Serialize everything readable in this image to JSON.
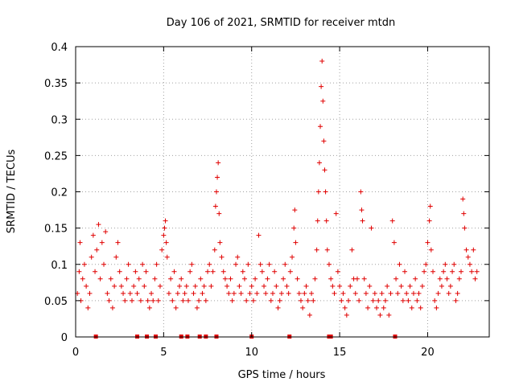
{
  "chart_data": {
    "type": "scatter",
    "title": "Day 106 of 2021, SRMTID for receiver mtdn",
    "xlabel": "GPS time / hours",
    "ylabel": "SRMTID / TECUs",
    "xlim": [
      0,
      23.5
    ],
    "ylim": [
      0,
      0.4
    ],
    "grid": true,
    "marker": "+",
    "marker_color": "#e00000",
    "x_ticks": [
      0,
      5,
      10,
      15,
      20
    ],
    "x_tick_labels": [
      "0",
      "5",
      "10",
      "15",
      "20"
    ],
    "y_ticks": [
      0,
      0.05,
      0.1,
      0.15,
      0.2,
      0.25,
      0.3,
      0.35,
      0.4
    ],
    "y_tick_labels": [
      "0",
      "0.05",
      "0.1",
      "0.15",
      "0.2",
      "0.25",
      "0.3",
      "0.35",
      "0.4"
    ],
    "flag_times_hours": [
      1.15,
      3.5,
      4.05,
      4.55,
      6.0,
      6.35,
      7.05,
      7.4,
      8.0,
      10.0,
      12.15,
      14.4,
      14.5,
      18.15
    ],
    "series": [
      {
        "name": "SRMTID",
        "points": [
          [
            0.1,
            0.06
          ],
          [
            0.2,
            0.09
          ],
          [
            0.25,
            0.13
          ],
          [
            0.3,
            0.05
          ],
          [
            0.4,
            0.08
          ],
          [
            0.5,
            0.1
          ],
          [
            0.6,
            0.07
          ],
          [
            0.7,
            0.04
          ],
          [
            0.8,
            0.06
          ],
          [
            0.9,
            0.11
          ],
          [
            1.0,
            0.14
          ],
          [
            1.1,
            0.09
          ],
          [
            1.2,
            0.12
          ],
          [
            1.3,
            0.155
          ],
          [
            1.4,
            0.08
          ],
          [
            1.5,
            0.13
          ],
          [
            1.6,
            0.1
          ],
          [
            1.7,
            0.145
          ],
          [
            1.8,
            0.06
          ],
          [
            1.9,
            0.05
          ],
          [
            2.0,
            0.08
          ],
          [
            2.1,
            0.04
          ],
          [
            2.2,
            0.07
          ],
          [
            2.3,
            0.11
          ],
          [
            2.4,
            0.13
          ],
          [
            2.5,
            0.09
          ],
          [
            2.6,
            0.07
          ],
          [
            2.7,
            0.06
          ],
          [
            2.8,
            0.05
          ],
          [
            2.9,
            0.08
          ],
          [
            3.0,
            0.1
          ],
          [
            3.1,
            0.06
          ],
          [
            3.2,
            0.05
          ],
          [
            3.3,
            0.07
          ],
          [
            3.4,
            0.09
          ],
          [
            3.5,
            0.06
          ],
          [
            3.6,
            0.08
          ],
          [
            3.7,
            0.05
          ],
          [
            3.8,
            0.1
          ],
          [
            3.9,
            0.07
          ],
          [
            4.0,
            0.09
          ],
          [
            4.1,
            0.05
          ],
          [
            4.2,
            0.04
          ],
          [
            4.3,
            0.06
          ],
          [
            4.4,
            0.05
          ],
          [
            4.5,
            0.08
          ],
          [
            4.6,
            0.1
          ],
          [
            4.7,
            0.05
          ],
          [
            4.8,
            0.07
          ],
          [
            4.9,
            0.12
          ],
          [
            5.0,
            0.14
          ],
          [
            5.05,
            0.15
          ],
          [
            5.1,
            0.16
          ],
          [
            5.15,
            0.13
          ],
          [
            5.2,
            0.11
          ],
          [
            5.3,
            0.06
          ],
          [
            5.4,
            0.08
          ],
          [
            5.5,
            0.05
          ],
          [
            5.6,
            0.09
          ],
          [
            5.7,
            0.04
          ],
          [
            5.8,
            0.06
          ],
          [
            5.9,
            0.07
          ],
          [
            6.0,
            0.08
          ],
          [
            6.1,
            0.05
          ],
          [
            6.2,
            0.06
          ],
          [
            6.3,
            0.07
          ],
          [
            6.4,
            0.05
          ],
          [
            6.5,
            0.09
          ],
          [
            6.6,
            0.1
          ],
          [
            6.7,
            0.06
          ],
          [
            6.8,
            0.07
          ],
          [
            6.9,
            0.04
          ],
          [
            7.0,
            0.05
          ],
          [
            7.1,
            0.08
          ],
          [
            7.2,
            0.06
          ],
          [
            7.3,
            0.07
          ],
          [
            7.4,
            0.05
          ],
          [
            7.5,
            0.09
          ],
          [
            7.6,
            0.1
          ],
          [
            7.7,
            0.07
          ],
          [
            7.8,
            0.09
          ],
          [
            7.9,
            0.12
          ],
          [
            7.95,
            0.18
          ],
          [
            8.0,
            0.2
          ],
          [
            8.05,
            0.22
          ],
          [
            8.1,
            0.24
          ],
          [
            8.15,
            0.17
          ],
          [
            8.2,
            0.13
          ],
          [
            8.3,
            0.11
          ],
          [
            8.4,
            0.09
          ],
          [
            8.5,
            0.08
          ],
          [
            8.6,
            0.07
          ],
          [
            8.7,
            0.06
          ],
          [
            8.8,
            0.08
          ],
          [
            8.9,
            0.05
          ],
          [
            9.0,
            0.06
          ],
          [
            9.1,
            0.1
          ],
          [
            9.2,
            0.11
          ],
          [
            9.3,
            0.07
          ],
          [
            9.4,
            0.06
          ],
          [
            9.5,
            0.09
          ],
          [
            9.6,
            0.08
          ],
          [
            9.7,
            0.05
          ],
          [
            9.8,
            0.1
          ],
          [
            9.9,
            0.06
          ],
          [
            10.0,
            0.07
          ],
          [
            10.1,
            0.05
          ],
          [
            10.2,
            0.08
          ],
          [
            10.3,
            0.06
          ],
          [
            10.4,
            0.14
          ],
          [
            10.5,
            0.1
          ],
          [
            10.6,
            0.09
          ],
          [
            10.7,
            0.07
          ],
          [
            10.8,
            0.06
          ],
          [
            10.9,
            0.08
          ],
          [
            11.0,
            0.1
          ],
          [
            11.1,
            0.05
          ],
          [
            11.2,
            0.06
          ],
          [
            11.3,
            0.09
          ],
          [
            11.4,
            0.07
          ],
          [
            11.5,
            0.04
          ],
          [
            11.6,
            0.05
          ],
          [
            11.7,
            0.06
          ],
          [
            11.8,
            0.08
          ],
          [
            11.9,
            0.1
          ],
          [
            12.0,
            0.07
          ],
          [
            12.1,
            0.06
          ],
          [
            12.2,
            0.09
          ],
          [
            12.3,
            0.11
          ],
          [
            12.4,
            0.15
          ],
          [
            12.45,
            0.175
          ],
          [
            12.5,
            0.13
          ],
          [
            12.6,
            0.08
          ],
          [
            12.7,
            0.06
          ],
          [
            12.8,
            0.05
          ],
          [
            12.9,
            0.04
          ],
          [
            13.0,
            0.06
          ],
          [
            13.1,
            0.07
          ],
          [
            13.2,
            0.05
          ],
          [
            13.3,
            0.03
          ],
          [
            13.4,
            0.06
          ],
          [
            13.5,
            0.05
          ],
          [
            13.6,
            0.08
          ],
          [
            13.7,
            0.12
          ],
          [
            13.75,
            0.16
          ],
          [
            13.8,
            0.2
          ],
          [
            13.85,
            0.24
          ],
          [
            13.9,
            0.29
          ],
          [
            13.95,
            0.345
          ],
          [
            14.0,
            0.38
          ],
          [
            14.05,
            0.325
          ],
          [
            14.1,
            0.27
          ],
          [
            14.15,
            0.23
          ],
          [
            14.2,
            0.2
          ],
          [
            14.25,
            0.16
          ],
          [
            14.3,
            0.12
          ],
          [
            14.4,
            0.1
          ],
          [
            14.5,
            0.08
          ],
          [
            14.6,
            0.07
          ],
          [
            14.7,
            0.06
          ],
          [
            14.8,
            0.17
          ],
          [
            14.9,
            0.09
          ],
          [
            15.0,
            0.07
          ],
          [
            15.1,
            0.05
          ],
          [
            15.2,
            0.06
          ],
          [
            15.3,
            0.04
          ],
          [
            15.4,
            0.03
          ],
          [
            15.5,
            0.05
          ],
          [
            15.6,
            0.07
          ],
          [
            15.7,
            0.12
          ],
          [
            15.8,
            0.08
          ],
          [
            15.9,
            0.06
          ],
          [
            16.0,
            0.08
          ],
          [
            16.1,
            0.05
          ],
          [
            16.2,
            0.2
          ],
          [
            16.25,
            0.175
          ],
          [
            16.3,
            0.16
          ],
          [
            16.4,
            0.08
          ],
          [
            16.5,
            0.06
          ],
          [
            16.6,
            0.04
          ],
          [
            16.7,
            0.07
          ],
          [
            16.8,
            0.15
          ],
          [
            16.9,
            0.05
          ],
          [
            17.0,
            0.06
          ],
          [
            17.1,
            0.04
          ],
          [
            17.2,
            0.05
          ],
          [
            17.3,
            0.03
          ],
          [
            17.4,
            0.06
          ],
          [
            17.5,
            0.04
          ],
          [
            17.6,
            0.05
          ],
          [
            17.7,
            0.07
          ],
          [
            17.8,
            0.03
          ],
          [
            17.9,
            0.06
          ],
          [
            18.0,
            0.16
          ],
          [
            18.1,
            0.13
          ],
          [
            18.2,
            0.08
          ],
          [
            18.3,
            0.06
          ],
          [
            18.4,
            0.1
          ],
          [
            18.5,
            0.07
          ],
          [
            18.6,
            0.05
          ],
          [
            18.7,
            0.09
          ],
          [
            18.8,
            0.06
          ],
          [
            18.9,
            0.05
          ],
          [
            19.0,
            0.07
          ],
          [
            19.1,
            0.04
          ],
          [
            19.2,
            0.06
          ],
          [
            19.3,
            0.08
          ],
          [
            19.4,
            0.05
          ],
          [
            19.5,
            0.06
          ],
          [
            19.6,
            0.04
          ],
          [
            19.7,
            0.07
          ],
          [
            19.8,
            0.09
          ],
          [
            19.9,
            0.1
          ],
          [
            20.0,
            0.13
          ],
          [
            20.1,
            0.16
          ],
          [
            20.15,
            0.18
          ],
          [
            20.2,
            0.12
          ],
          [
            20.3,
            0.09
          ],
          [
            20.4,
            0.05
          ],
          [
            20.5,
            0.04
          ],
          [
            20.6,
            0.06
          ],
          [
            20.7,
            0.08
          ],
          [
            20.8,
            0.07
          ],
          [
            20.9,
            0.09
          ],
          [
            21.0,
            0.1
          ],
          [
            21.1,
            0.08
          ],
          [
            21.2,
            0.06
          ],
          [
            21.3,
            0.07
          ],
          [
            21.4,
            0.09
          ],
          [
            21.5,
            0.1
          ],
          [
            21.6,
            0.05
          ],
          [
            21.7,
            0.06
          ],
          [
            21.8,
            0.08
          ],
          [
            21.9,
            0.09
          ],
          [
            22.0,
            0.19
          ],
          [
            22.05,
            0.17
          ],
          [
            22.1,
            0.15
          ],
          [
            22.2,
            0.12
          ],
          [
            22.3,
            0.11
          ],
          [
            22.4,
            0.1
          ],
          [
            22.5,
            0.09
          ],
          [
            22.6,
            0.12
          ],
          [
            22.7,
            0.08
          ],
          [
            22.8,
            0.09
          ]
        ]
      }
    ]
  }
}
